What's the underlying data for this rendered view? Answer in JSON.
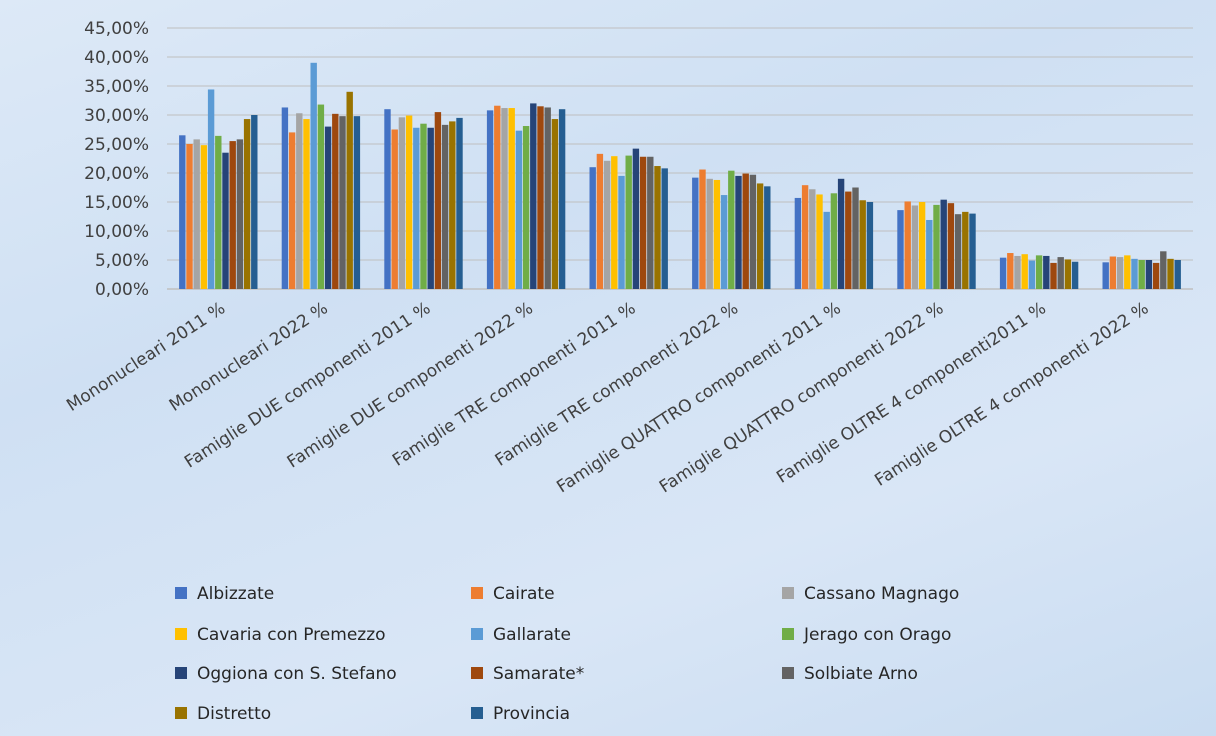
{
  "colors": {
    "background": "#d6e4f5",
    "gridline": "#bfbfbf",
    "axis": "#bfbfbf",
    "text": "#404040"
  },
  "chart_data": {
    "type": "bar",
    "title": "",
    "xlabel": "",
    "ylabel": "",
    "ylim": [
      0,
      0.45
    ],
    "y_tick_values": [
      0,
      0.05,
      0.1,
      0.15,
      0.2,
      0.25,
      0.3,
      0.35,
      0.4,
      0.45
    ],
    "y_tick_labels": [
      "0,00%",
      "5,00%",
      "10,00%",
      "15,00%",
      "20,00%",
      "25,00%",
      "30,00%",
      "35,00%",
      "40,00%",
      "45,00%"
    ],
    "grid": true,
    "legend_position": "bottom",
    "categories": [
      "Mononucleari 2011 %",
      "Mononucleari 2022 %",
      "Famiglie DUE componenti 2011 %",
      "Famiglie DUE componenti 2022 %",
      "Famiglie TRE componenti 2011 %",
      "Famiglie TRE componenti 2022 %",
      "Famiglie QUATTRO componenti 2011 %",
      "Famiglie QUATTRO componenti 2022 %",
      "Famiglie OLTRE 4 componenti2011 %",
      "Famiglie OLTRE 4 componenti 2022 %"
    ],
    "series": [
      {
        "name": "Albizzate",
        "color": "#4472c4",
        "values": [
          0.265,
          0.313,
          0.31,
          0.308,
          0.21,
          0.192,
          0.157,
          0.136,
          0.054,
          0.046
        ]
      },
      {
        "name": "Cairate",
        "color": "#ed7d31",
        "values": [
          0.25,
          0.27,
          0.275,
          0.316,
          0.233,
          0.206,
          0.179,
          0.151,
          0.062,
          0.056
        ]
      },
      {
        "name": "Cassano Magnago",
        "color": "#a5a5a5",
        "values": [
          0.258,
          0.303,
          0.296,
          0.312,
          0.221,
          0.19,
          0.172,
          0.144,
          0.057,
          0.055
        ]
      },
      {
        "name": "Cavaria con Premezzo",
        "color": "#ffc000",
        "values": [
          0.248,
          0.293,
          0.299,
          0.312,
          0.229,
          0.188,
          0.163,
          0.15,
          0.06,
          0.058
        ]
      },
      {
        "name": "Gallarate",
        "color": "#5b9bd5",
        "values": [
          0.344,
          0.39,
          0.278,
          0.273,
          0.195,
          0.162,
          0.133,
          0.119,
          0.049,
          0.052
        ]
      },
      {
        "name": "Jerago con  Orago",
        "color": "#70ad47",
        "values": [
          0.264,
          0.318,
          0.285,
          0.281,
          0.23,
          0.204,
          0.165,
          0.145,
          0.058,
          0.05
        ]
      },
      {
        "name": "Oggiona con S. Stefano",
        "color": "#264478",
        "values": [
          0.235,
          0.28,
          0.278,
          0.32,
          0.242,
          0.195,
          0.19,
          0.154,
          0.057,
          0.05
        ]
      },
      {
        "name": "Samarate*",
        "color": "#9e480e",
        "values": [
          0.255,
          0.302,
          0.305,
          0.315,
          0.228,
          0.199,
          0.168,
          0.148,
          0.045,
          0.045
        ]
      },
      {
        "name": "Solbiate Arno",
        "color": "#636363",
        "values": [
          0.258,
          0.298,
          0.283,
          0.313,
          0.228,
          0.197,
          0.175,
          0.129,
          0.055,
          0.065
        ]
      },
      {
        "name": "Distretto",
        "color": "#997300",
        "values": [
          0.293,
          0.34,
          0.289,
          0.293,
          0.212,
          0.182,
          0.153,
          0.133,
          0.051,
          0.052
        ]
      },
      {
        "name": "Provincia",
        "color": "#255e91",
        "values": [
          0.3,
          0.298,
          0.295,
          0.31,
          0.208,
          0.177,
          0.15,
          0.13,
          0.047,
          0.05
        ]
      }
    ]
  }
}
